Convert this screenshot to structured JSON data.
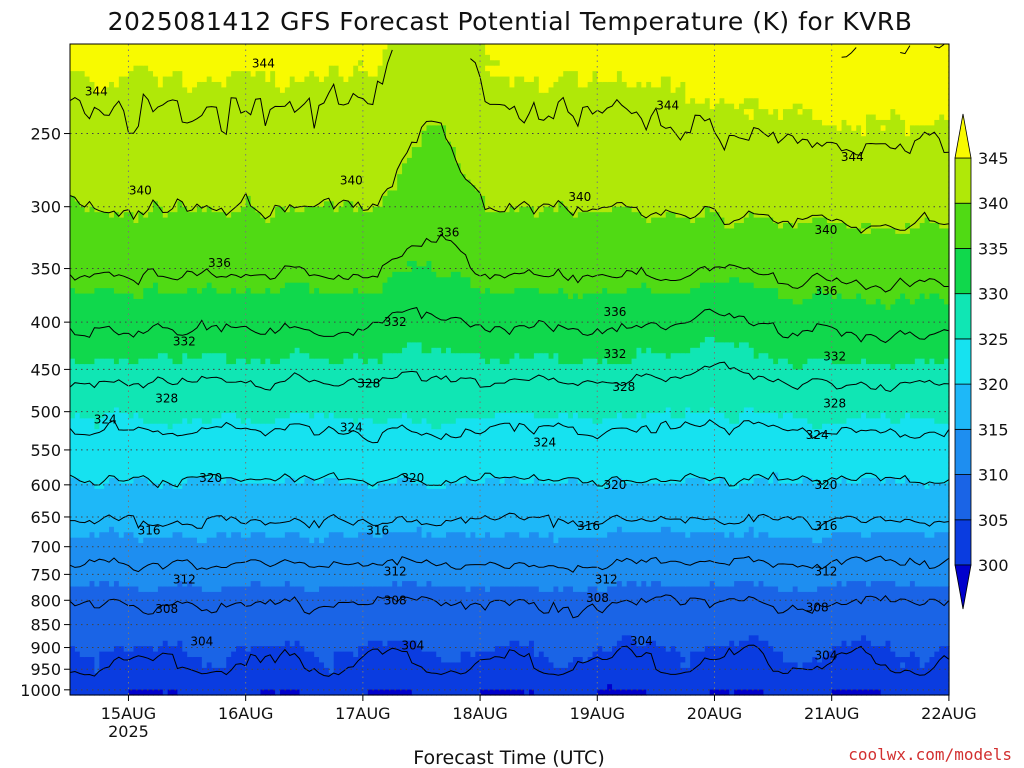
{
  "chart_data": {
    "type": "heatmap",
    "title": "2025081412 GFS Forecast Potential Temperature (K) for KVRB",
    "xlabel": "Forecast Time (UTC)",
    "ylabel": "",
    "credit": "coolwx.com/models",
    "x_ticks": [
      "15AUG",
      "16AUG",
      "17AUG",
      "18AUG",
      "19AUG",
      "20AUG",
      "21AUG",
      "22AUG"
    ],
    "x_year_label": "2025",
    "y_ticks": [
      250,
      300,
      350,
      400,
      450,
      500,
      550,
      600,
      650,
      700,
      750,
      800,
      850,
      900,
      950,
      1000
    ],
    "ylim": [
      1013,
      200
    ],
    "y_scale": "log",
    "grid": true,
    "colorbar": {
      "levels": [
        300,
        305,
        310,
        315,
        320,
        325,
        330,
        335,
        340,
        345
      ],
      "colors": [
        "#0000cc",
        "#0a3ce0",
        "#1a64e6",
        "#1e8ef0",
        "#1eb8f8",
        "#16e2f0",
        "#10e6b4",
        "#10d84c",
        "#50da14",
        "#b0e808",
        "#f8fa00"
      ],
      "extend": "both"
    },
    "contour_interval": 4,
    "contour_labels": [
      {
        "value": 344,
        "x": 0.22,
        "p": 210
      },
      {
        "value": 344,
        "x": 0.03,
        "p": 225
      },
      {
        "value": 344,
        "x": 0.68,
        "p": 233
      },
      {
        "value": 344,
        "x": 0.89,
        "p": 265
      },
      {
        "value": 340,
        "x": 0.08,
        "p": 288
      },
      {
        "value": 340,
        "x": 0.32,
        "p": 281
      },
      {
        "value": 340,
        "x": 0.58,
        "p": 293
      },
      {
        "value": 340,
        "x": 0.86,
        "p": 318
      },
      {
        "value": 336,
        "x": 0.17,
        "p": 345
      },
      {
        "value": 336,
        "x": 0.43,
        "p": 320
      },
      {
        "value": 336,
        "x": 0.62,
        "p": 390
      },
      {
        "value": 336,
        "x": 0.86,
        "p": 370
      },
      {
        "value": 332,
        "x": 0.13,
        "p": 420
      },
      {
        "value": 332,
        "x": 0.37,
        "p": 400
      },
      {
        "value": 332,
        "x": 0.62,
        "p": 433
      },
      {
        "value": 332,
        "x": 0.87,
        "p": 436
      },
      {
        "value": 328,
        "x": 0.11,
        "p": 484
      },
      {
        "value": 328,
        "x": 0.34,
        "p": 466
      },
      {
        "value": 328,
        "x": 0.63,
        "p": 470
      },
      {
        "value": 328,
        "x": 0.87,
        "p": 490
      },
      {
        "value": 324,
        "x": 0.04,
        "p": 510
      },
      {
        "value": 324,
        "x": 0.32,
        "p": 520
      },
      {
        "value": 324,
        "x": 0.54,
        "p": 540
      },
      {
        "value": 324,
        "x": 0.85,
        "p": 530
      },
      {
        "value": 320,
        "x": 0.16,
        "p": 590
      },
      {
        "value": 320,
        "x": 0.39,
        "p": 590
      },
      {
        "value": 320,
        "x": 0.62,
        "p": 600
      },
      {
        "value": 320,
        "x": 0.86,
        "p": 600
      },
      {
        "value": 316,
        "x": 0.09,
        "p": 672
      },
      {
        "value": 316,
        "x": 0.35,
        "p": 672
      },
      {
        "value": 316,
        "x": 0.59,
        "p": 665
      },
      {
        "value": 316,
        "x": 0.86,
        "p": 665
      },
      {
        "value": 312,
        "x": 0.13,
        "p": 760
      },
      {
        "value": 312,
        "x": 0.37,
        "p": 745
      },
      {
        "value": 312,
        "x": 0.61,
        "p": 760
      },
      {
        "value": 312,
        "x": 0.86,
        "p": 745
      },
      {
        "value": 308,
        "x": 0.11,
        "p": 818
      },
      {
        "value": 308,
        "x": 0.37,
        "p": 800
      },
      {
        "value": 308,
        "x": 0.6,
        "p": 795
      },
      {
        "value": 308,
        "x": 0.85,
        "p": 815
      },
      {
        "value": 304,
        "x": 0.15,
        "p": 887
      },
      {
        "value": 304,
        "x": 0.39,
        "p": 895
      },
      {
        "value": 304,
        "x": 0.65,
        "p": 885
      },
      {
        "value": 304,
        "x": 0.86,
        "p": 918
      }
    ]
  }
}
